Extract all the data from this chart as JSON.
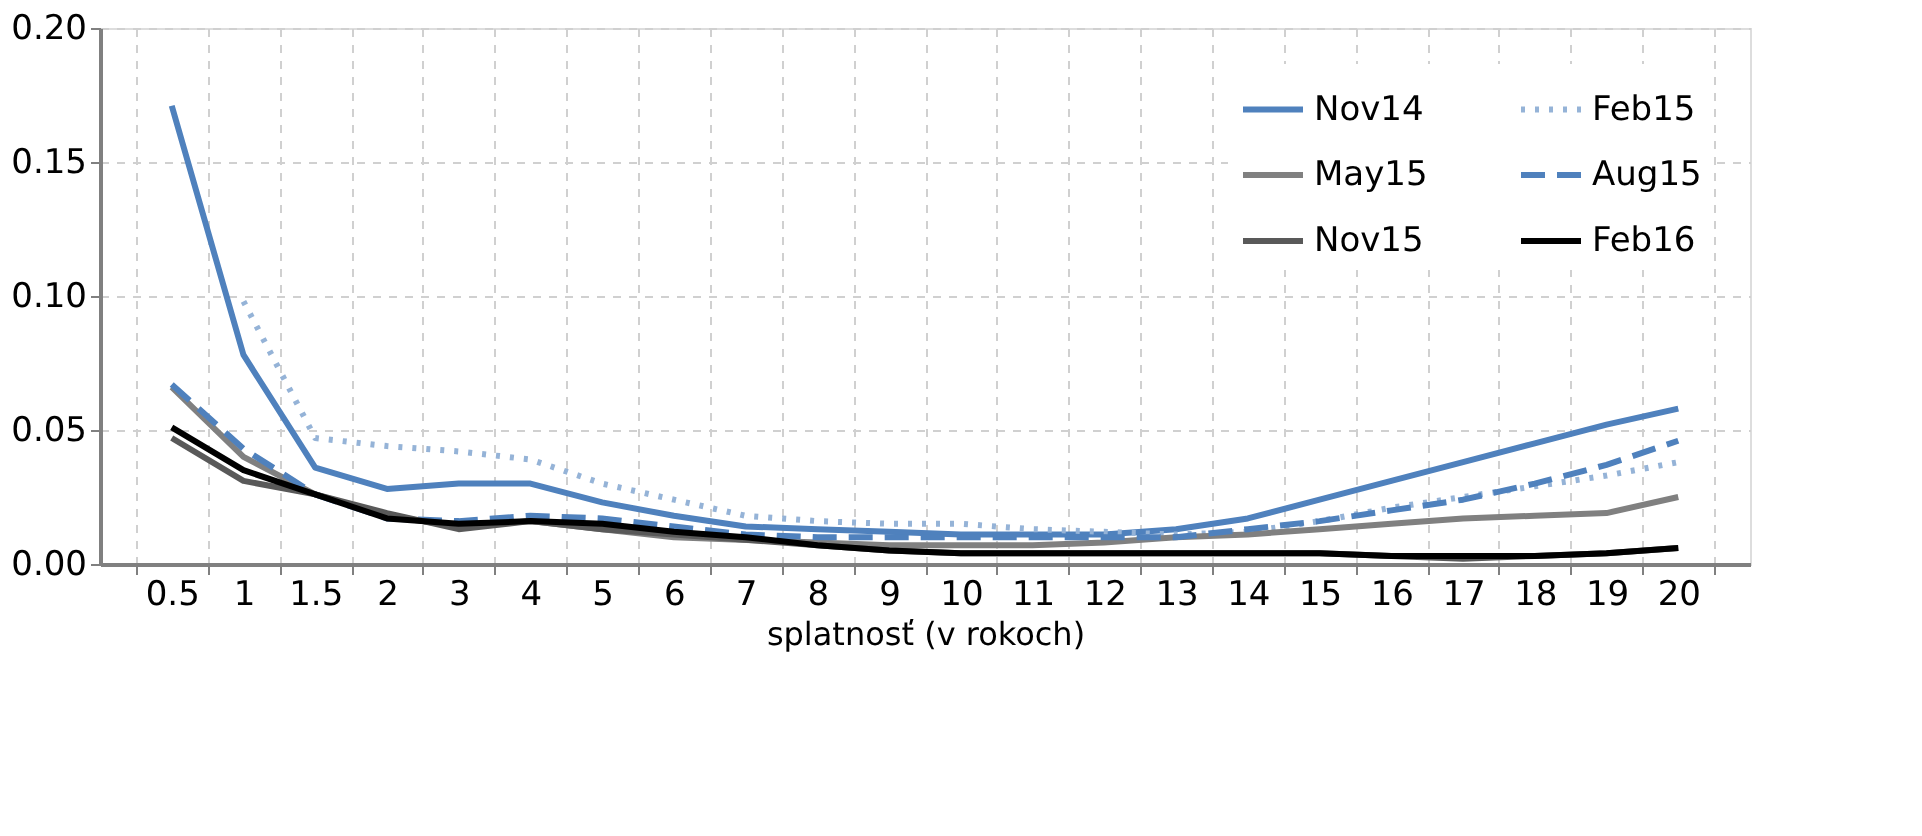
{
  "chart_data": {
    "type": "line",
    "xlabel": "splatnosť (v rokoch)",
    "categories": [
      "0.5",
      "1",
      "1.5",
      "2",
      "3",
      "4",
      "5",
      "6",
      "7",
      "8",
      "9",
      "10",
      "11",
      "12",
      "13",
      "14",
      "15",
      "16",
      "17",
      "18",
      "19",
      "20"
    ],
    "ylim": [
      0,
      0.2
    ],
    "yticks": [
      {
        "value": 0,
        "label": "0.00"
      },
      {
        "value": 0.05,
        "label": "0.05"
      },
      {
        "value": 0.1,
        "label": "0.10"
      },
      {
        "value": 0.15,
        "label": "0.15"
      },
      {
        "value": 0.2,
        "label": "0.20"
      }
    ],
    "grid": true,
    "legend": "top right",
    "marker": "none",
    "series": [
      {
        "name": "Nov14",
        "color": "#4f81bd",
        "line_style": "solid",
        "values": [
          0.171,
          0.078,
          0.036,
          0.028,
          0.03,
          0.03,
          0.023,
          0.018,
          0.014,
          0.013,
          0.012,
          0.011,
          0.011,
          0.011,
          0.013,
          0.017,
          0.024,
          0.031,
          0.038,
          0.045,
          0.052,
          0.058
        ]
      },
      {
        "name": "Feb15",
        "color": "#95b3d7",
        "line_style": "dotted",
        "values": [
          null,
          0.098,
          0.047,
          0.044,
          0.042,
          0.039,
          0.03,
          0.024,
          0.018,
          0.016,
          0.015,
          0.015,
          0.013,
          0.012,
          0.011,
          0.012,
          0.016,
          0.021,
          0.025,
          0.029,
          0.033,
          0.038
        ]
      },
      {
        "name": "May15",
        "color": "#808080",
        "line_style": "solid",
        "values": [
          0.066,
          0.04,
          0.026,
          0.018,
          0.014,
          0.016,
          0.013,
          0.01,
          0.009,
          0.008,
          0.007,
          0.007,
          0.007,
          0.008,
          0.01,
          0.011,
          0.013,
          0.015,
          0.017,
          0.018,
          0.019,
          0.025
        ]
      },
      {
        "name": "Aug15",
        "color": "#4f81bd",
        "line_style": "dashed",
        "values": [
          0.067,
          0.043,
          0.026,
          0.017,
          0.016,
          0.018,
          0.017,
          0.014,
          0.011,
          0.01,
          0.01,
          0.01,
          0.01,
          0.01,
          0.01,
          0.013,
          0.016,
          0.02,
          0.024,
          0.03,
          0.037,
          0.046
        ]
      },
      {
        "name": "Nov15",
        "color": "#595959",
        "line_style": "solid",
        "values": [
          0.047,
          0.031,
          0.026,
          0.019,
          0.013,
          0.016,
          0.013,
          0.011,
          0.009,
          0.007,
          0.005,
          0.004,
          0.004,
          0.004,
          0.004,
          0.004,
          0.004,
          0.003,
          0.002,
          0.003,
          0.004,
          0.006
        ]
      },
      {
        "name": "Feb16",
        "color": "#000000",
        "line_style": "solid",
        "values": [
          0.051,
          0.035,
          0.026,
          0.017,
          0.015,
          0.016,
          0.015,
          0.012,
          0.01,
          0.007,
          0.005,
          0.004,
          0.004,
          0.004,
          0.004,
          0.004,
          0.004,
          0.003,
          0.003,
          0.003,
          0.004,
          0.006
        ]
      }
    ]
  }
}
